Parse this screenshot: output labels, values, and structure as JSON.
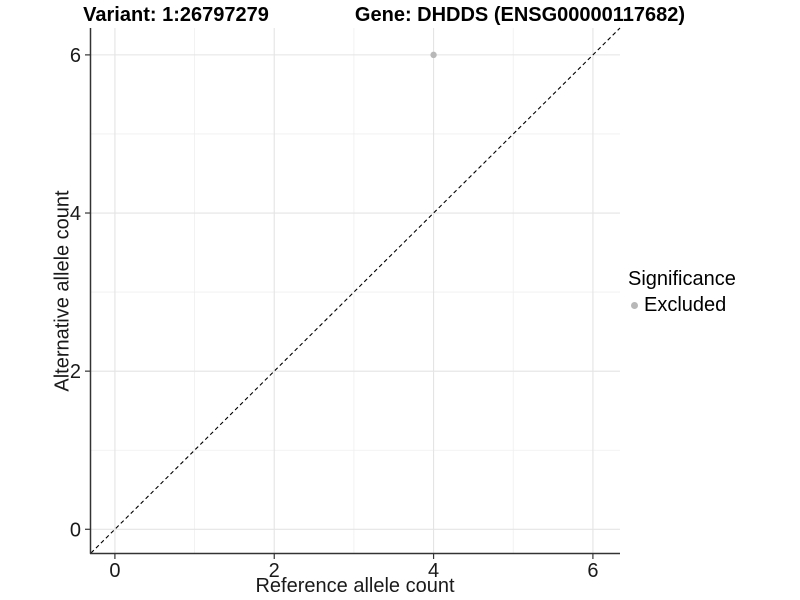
{
  "header": {
    "variant_title": "Variant: 1:26797279",
    "gene_title": "Gene: DHDDS (ENSG00000117682)"
  },
  "chart_data": {
    "type": "scatter",
    "titles": {
      "left": "Variant: 1:26797279",
      "right": "Gene: DHDDS (ENSG00000117682)"
    },
    "xlabel": "Reference allele count",
    "ylabel": "Alternative allele count",
    "xlim": [
      -0.3,
      6.34
    ],
    "ylim": [
      -0.3,
      6.34
    ],
    "x_ticks": [
      0,
      2,
      4,
      6
    ],
    "y_ticks": [
      0,
      2,
      4,
      6
    ],
    "x_minor_ticks": [
      1,
      3,
      5
    ],
    "y_minor_ticks": [
      1,
      3,
      5
    ],
    "grid": "major and minor gridlines, white panel",
    "legend": {
      "title": "Significance",
      "position": "right",
      "items": [
        {
          "label": "Excluded",
          "color": "#b8b8b8"
        }
      ]
    },
    "series": [
      {
        "name": "Excluded",
        "color": "#b8b8b8",
        "points": [
          {
            "x": 4,
            "y": 6
          }
        ]
      }
    ],
    "reference_line": {
      "kind": "identity y=x",
      "style": "dashed",
      "color": "#000000"
    }
  },
  "colors": {
    "background": "#ffffff",
    "grid_major": "#e4e4e4",
    "grid_minor": "#efefef",
    "axis_line": "#333333",
    "tick_mark": "#333333",
    "tick_label": "#1a1a1a",
    "point": "#b8b8b8",
    "reference_line": "#000000"
  }
}
